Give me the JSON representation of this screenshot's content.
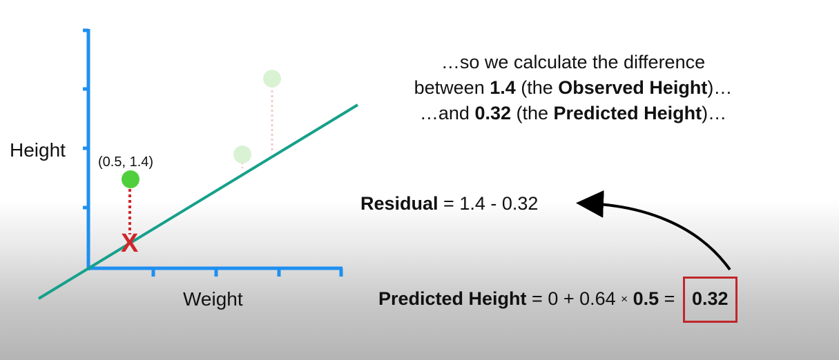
{
  "axes": {
    "y_label": "Height",
    "x_label": "Weight"
  },
  "point_label": "(0.5, 1.4)",
  "caption": {
    "line1": "…so we calculate the difference",
    "line2_pre": "between ",
    "line2_val": "1.4",
    "line2_mid": " (the ",
    "line2_term": "Observed Height",
    "line2_post": ")…",
    "line3_pre": "…and ",
    "line3_val": "0.32",
    "line3_mid": " (the ",
    "line3_term": "Predicted Height",
    "line3_post": ")…"
  },
  "residual_eq": {
    "label": "Residual",
    "rest": " = 1.4 - 0.32"
  },
  "predicted_eq": {
    "label": "Predicted Height",
    "part1": " = 0 + 0.64 ",
    "times": "×",
    "part2": " ",
    "value": "0.5",
    "equals": " = ",
    "result": "0.32"
  },
  "marker": "X",
  "colors": {
    "axis": "#1f8ff0",
    "fit_line": "#15a08a",
    "observed_point": "#4fcf3c",
    "faded_point": "#d9f2d4",
    "residual_line": "#d0262a",
    "faded_residual": "#f6c9c4",
    "box": "#c0262a"
  }
}
